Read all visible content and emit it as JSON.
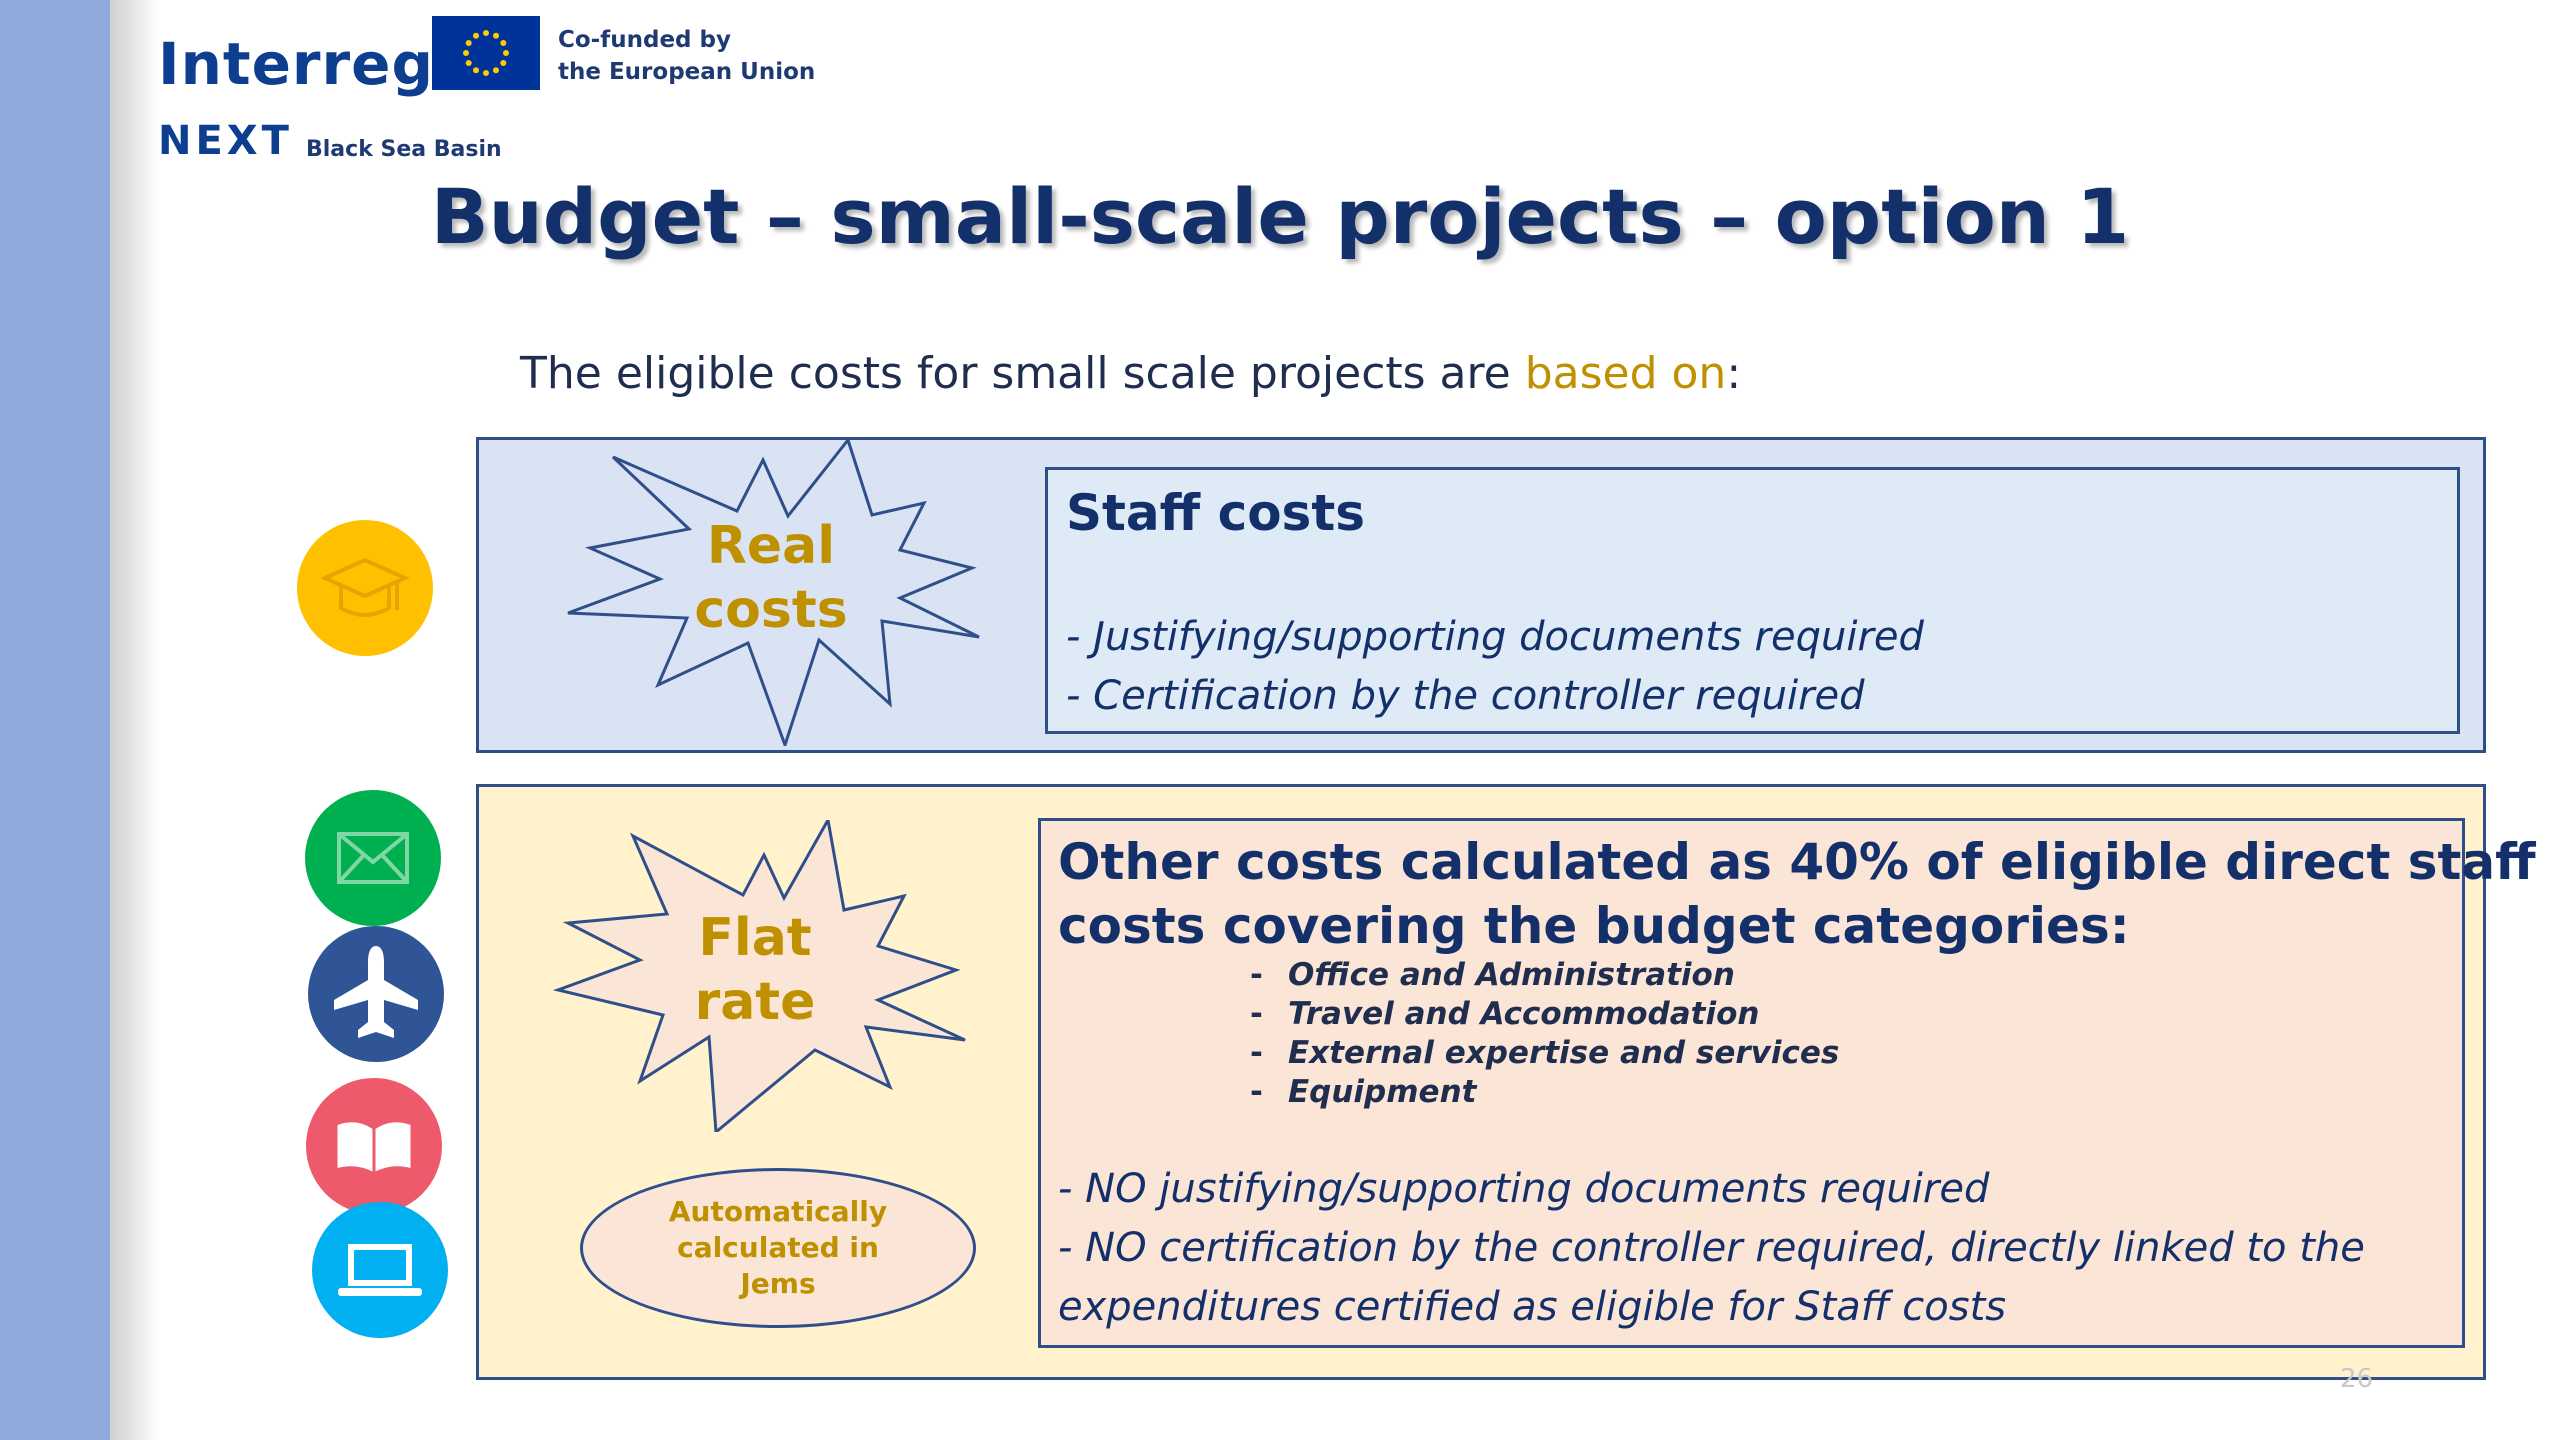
{
  "header": {
    "interreg_logo": "Interreg",
    "cofunded_line1": "Co-funded by",
    "cofunded_line2": "the European Union",
    "next_logo": "NEXT",
    "black_sea_basin": "Black Sea Basin"
  },
  "slide": {
    "title": "Budget – small-scale projects – option 1",
    "subtitle_prefix": "The eligible costs for small scale projects are ",
    "subtitle_highlight": "based on",
    "subtitle_suffix": ":",
    "page_number": "26"
  },
  "real_costs": {
    "burst_line1": "Real",
    "burst_line2": "costs",
    "panel_title": "Staff costs",
    "lines": [
      "- Justifying/supporting documents required",
      "- Certification by the controller required"
    ],
    "icon": "graduation-cap-icon"
  },
  "flat_rate": {
    "burst_line1": "Flat",
    "burst_line2": "rate",
    "note_line1": "Automatically",
    "note_line2": "calculated in",
    "note_line3": "Jems",
    "panel_title_line1": "Other costs calculated as 40% of eligible direct staff",
    "panel_title_line2": "costs covering the budget categories:",
    "categories": [
      "Office and Administration",
      "Travel and Accommodation",
      "External expertise and services",
      "Equipment"
    ],
    "category_dash": "-",
    "lines": [
      "- NO justifying/supporting documents required",
      "- NO certification by the controller required, directly linked to the",
      "expenditures certified as eligible for Staff costs"
    ],
    "icons": [
      "envelope-icon",
      "airplane-icon",
      "open-book-icon",
      "laptop-icon"
    ]
  },
  "colors": {
    "sidebar": "#8eaadb",
    "title": "#14306b",
    "highlight": "#bf9000",
    "box_blue": "#dae3f3",
    "box_yellow": "#fff2cc",
    "panel_peach": "#fbe5d6",
    "icon_yellow": "#ffc000",
    "icon_green": "#00b050",
    "icon_navy": "#2f5597",
    "icon_red": "#ee5a6b",
    "icon_cyan": "#00b0f0"
  }
}
